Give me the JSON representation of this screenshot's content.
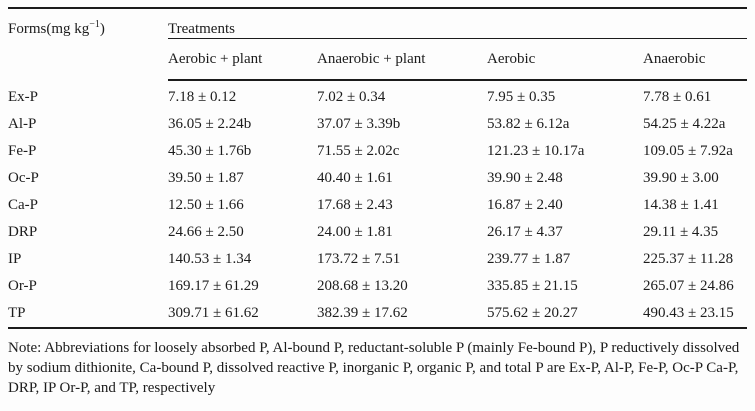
{
  "page": {
    "background_color": "#fdfdfd",
    "text_color": "#1c1c1c",
    "rule_color": "#1c1c1c"
  },
  "table": {
    "forms_label": {
      "prefix": "Forms(mg kg",
      "sup": "−1",
      "suffix": ")"
    },
    "treatments_label": "Treatments",
    "columns": [
      "Aerobic + plant",
      "Anaerobic + plant",
      "Aerobic",
      "Anaerobic"
    ],
    "rows": [
      {
        "form": "Ex-P",
        "values": [
          "7.18 ± 0.12",
          "7.02 ± 0.34",
          "7.95 ± 0.35",
          "7.78 ± 0.61"
        ]
      },
      {
        "form": "Al-P",
        "values": [
          "36.05 ± 2.24b",
          "37.07 ± 3.39b",
          "53.82 ± 6.12a",
          "54.25 ± 4.22a"
        ]
      },
      {
        "form": "Fe-P",
        "values": [
          "45.30 ± 1.76b",
          "71.55 ± 2.02c",
          "121.23 ± 10.17a",
          "109.05 ± 7.92a"
        ]
      },
      {
        "form": "Oc-P",
        "values": [
          "39.50 ± 1.87",
          "40.40 ± 1.61",
          "39.90 ± 2.48",
          "39.90 ± 3.00"
        ]
      },
      {
        "form": "Ca-P",
        "values": [
          "12.50 ± 1.66",
          "17.68 ± 2.43",
          "16.87 ± 2.40",
          "14.38 ± 1.41"
        ]
      },
      {
        "form": "DRP",
        "values": [
          "24.66 ± 2.50",
          "24.00 ± 1.81",
          "26.17 ± 4.37",
          "29.11 ± 4.35"
        ]
      },
      {
        "form": "IP",
        "values": [
          "140.53 ± 1.34",
          "173.72 ± 7.51",
          "239.77 ± 1.87",
          "225.37 ± 11.28"
        ]
      },
      {
        "form": "Or-P",
        "values": [
          "169.17 ± 61.29",
          "208.68 ± 13.20",
          "335.85 ± 21.15",
          "265.07 ± 24.86"
        ]
      },
      {
        "form": "TP",
        "values": [
          "309.71 ± 61.62",
          "382.39 ± 17.62",
          "575.62 ± 20.27",
          "490.43 ± 23.15"
        ]
      }
    ]
  },
  "note": "Note: Abbreviations for loosely absorbed P, Al-bound P, reductant-soluble P (mainly Fe-bound P), P reductively dissolved by sodium dithionite, Ca-bound P, dissolved reactive P, inorganic P, organic P, and total P are Ex-P, Al-P, Fe-P, Oc-P Ca-P, DRP, IP Or-P, and TP, respectively"
}
